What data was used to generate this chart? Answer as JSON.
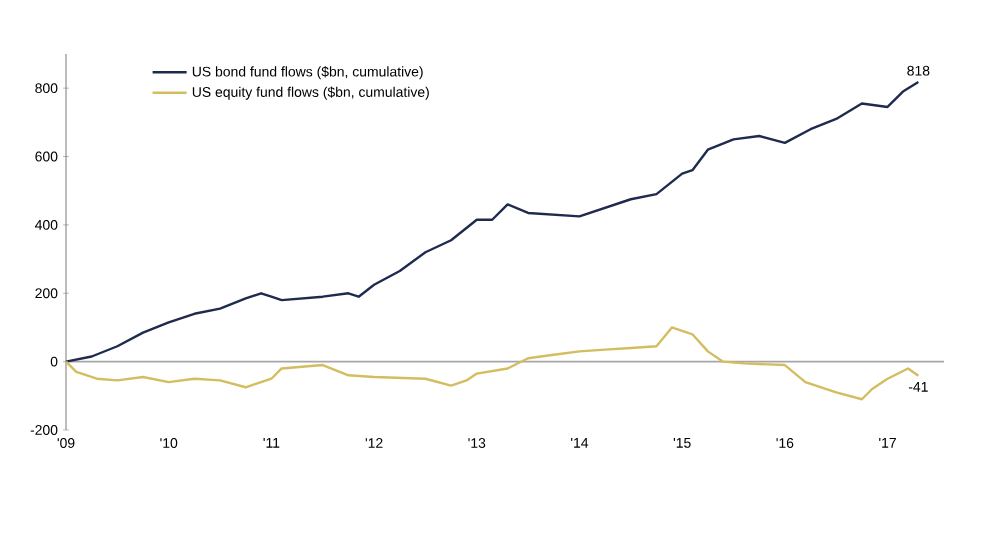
{
  "chart_data": {
    "type": "line",
    "xlim": [
      2009,
      2017.55
    ],
    "ylim": [
      -200,
      900
    ],
    "xticks": [
      {
        "value": 2009,
        "label": "'09"
      },
      {
        "value": 2010,
        "label": "'10"
      },
      {
        "value": 2011,
        "label": "'11"
      },
      {
        "value": 2012,
        "label": "'12"
      },
      {
        "value": 2013,
        "label": "'13"
      },
      {
        "value": 2014,
        "label": "'14"
      },
      {
        "value": 2015,
        "label": "'15"
      },
      {
        "value": 2016,
        "label": "'16"
      },
      {
        "value": 2017,
        "label": "'17"
      }
    ],
    "yticks": [
      -200,
      0,
      200,
      400,
      600,
      800
    ],
    "grid": false,
    "ref_lines": [
      {
        "axis": "y",
        "value": 0,
        "color": "#a6a6a6"
      }
    ],
    "legend": "top left",
    "marker": "none",
    "line_style": "solid",
    "series": [
      {
        "name": "US bond fund flows ($bn, cumulative)",
        "color": "#1f2a4f",
        "x": [
          2009,
          2009.25,
          2009.5,
          2009.75,
          2010,
          2010.25,
          2010.5,
          2010.75,
          2010.9,
          2011,
          2011.1,
          2011.5,
          2011.75,
          2011.85,
          2012,
          2012.25,
          2012.5,
          2012.75,
          2013,
          2013.15,
          2013.3,
          2013.5,
          2014,
          2014.25,
          2014.5,
          2014.75,
          2015,
          2015.1,
          2015.25,
          2015.5,
          2015.75,
          2016,
          2016.25,
          2016.5,
          2016.75,
          2017,
          2017.15,
          2017.3
        ],
        "values": [
          0,
          15,
          45,
          85,
          115,
          140,
          155,
          185,
          200,
          190,
          180,
          190,
          200,
          190,
          225,
          265,
          320,
          355,
          415,
          415,
          460,
          435,
          425,
          450,
          475,
          490,
          550,
          560,
          620,
          650,
          660,
          640,
          680,
          710,
          755,
          745,
          790,
          818
        ]
      },
      {
        "name": "US equity fund flows ($bn, cumulative)",
        "color": "#d4bd5e",
        "x": [
          2009,
          2009.1,
          2009.3,
          2009.5,
          2009.75,
          2010,
          2010.25,
          2010.5,
          2010.75,
          2011,
          2011.1,
          2011.5,
          2011.75,
          2012,
          2012.5,
          2012.75,
          2012.9,
          2013,
          2013.3,
          2013.5,
          2013.75,
          2014,
          2014.25,
          2014.5,
          2014.75,
          2014.9,
          2015.1,
          2015.25,
          2015.4,
          2015.6,
          2016,
          2016.2,
          2016.5,
          2016.75,
          2016.85,
          2017,
          2017.2,
          2017.3
        ],
        "values": [
          0,
          -30,
          -50,
          -55,
          -45,
          -60,
          -50,
          -55,
          -75,
          -50,
          -20,
          -10,
          -40,
          -45,
          -50,
          -70,
          -55,
          -35,
          -20,
          10,
          20,
          30,
          35,
          40,
          45,
          100,
          80,
          30,
          0,
          -5,
          -10,
          -60,
          -90,
          -110,
          -80,
          -50,
          -20,
          -41
        ]
      }
    ],
    "annotations": [
      {
        "text": "818",
        "x": 2017.3,
        "y": 818
      },
      {
        "text": "-41",
        "x": 2017.3,
        "y": -41
      }
    ]
  }
}
